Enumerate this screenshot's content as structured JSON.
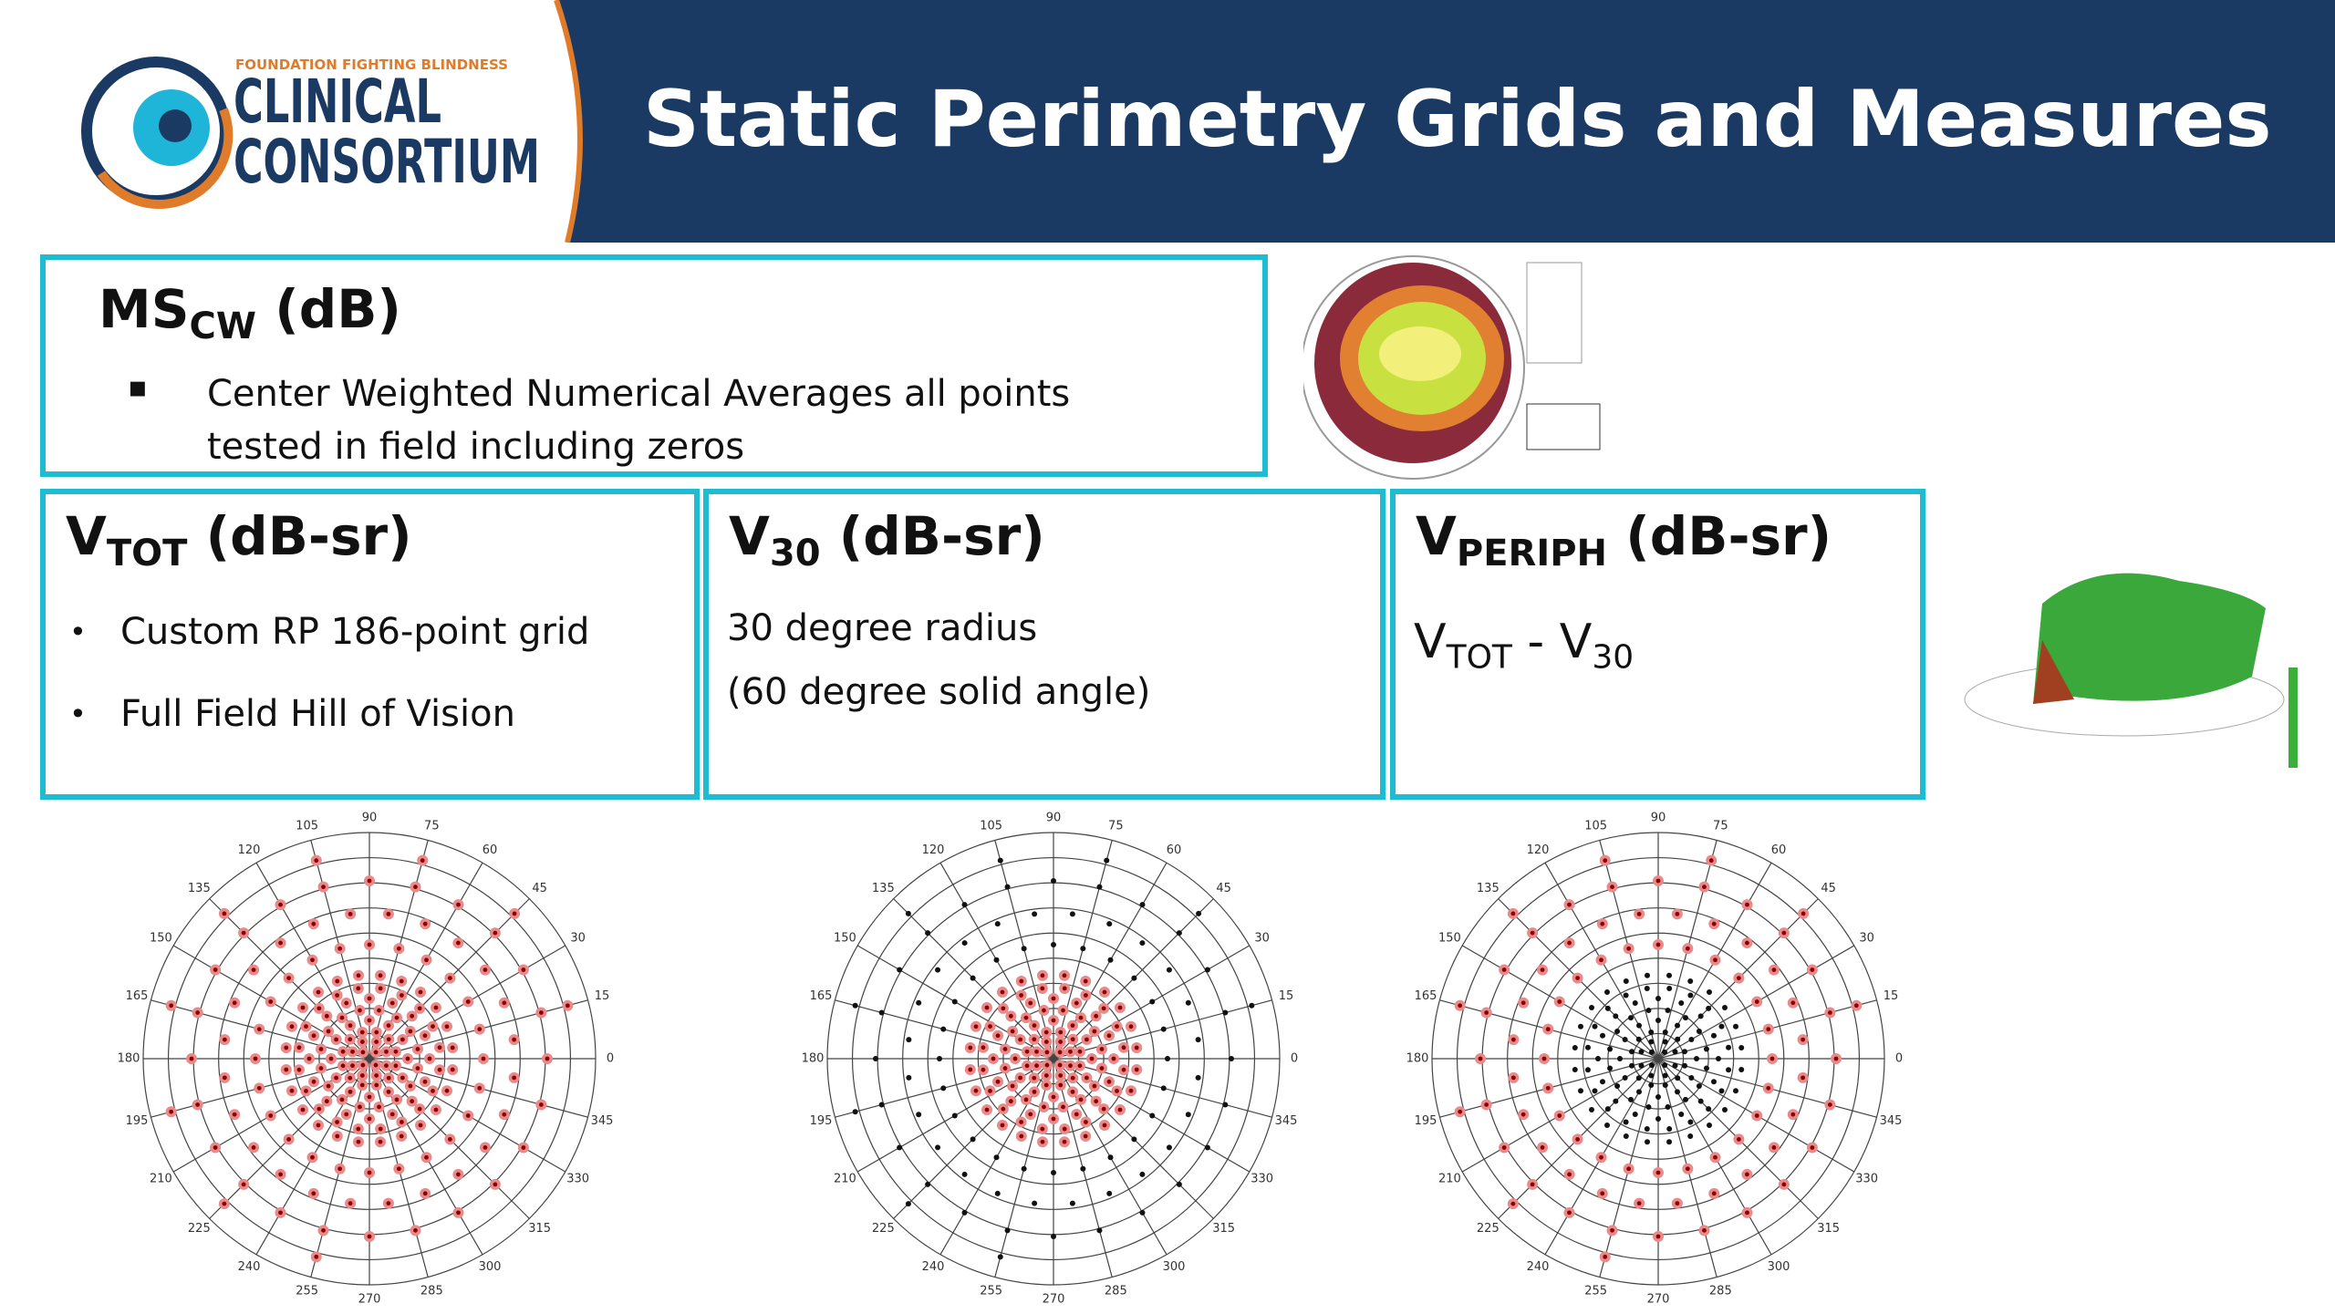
{
  "header": {
    "org": "FOUNDATION FIGHTING BLINDNESS",
    "logo_line1": "CLINICAL",
    "logo_line2": "CONSORTIUM",
    "title": "Static Perimetry Grids and Measures"
  },
  "boxes": [
    {
      "main": "MS",
      "sub": "CW",
      "unit": "(dB)",
      "bullets": [
        "Center Weighted Numerical Averages all points tested in field including zeros"
      ]
    },
    {
      "main": "V",
      "sub": "TOT",
      "unit": "(dB-sr)",
      "bullets": [
        "Custom RP 186-point grid",
        "Full Field Hill of Vision"
      ]
    },
    {
      "main": "V",
      "sub": "30",
      "unit": "(dB-sr)",
      "lines": [
        "30 degree radius",
        "(60 degree solid angle)"
      ]
    },
    {
      "main": "V",
      "sub": "PERIPH",
      "unit": "(dB-sr)",
      "formula": {
        "a": "V",
        "a_sub": "TOT",
        "op": " - ",
        "b": "V",
        "b_sub": "30"
      }
    }
  ],
  "polar_angle_labels": [
    0,
    15,
    30,
    45,
    60,
    75,
    90,
    105,
    120,
    135,
    150,
    165,
    180,
    195,
    210,
    225,
    240,
    255,
    270,
    285,
    300,
    315,
    330,
    345
  ]
}
